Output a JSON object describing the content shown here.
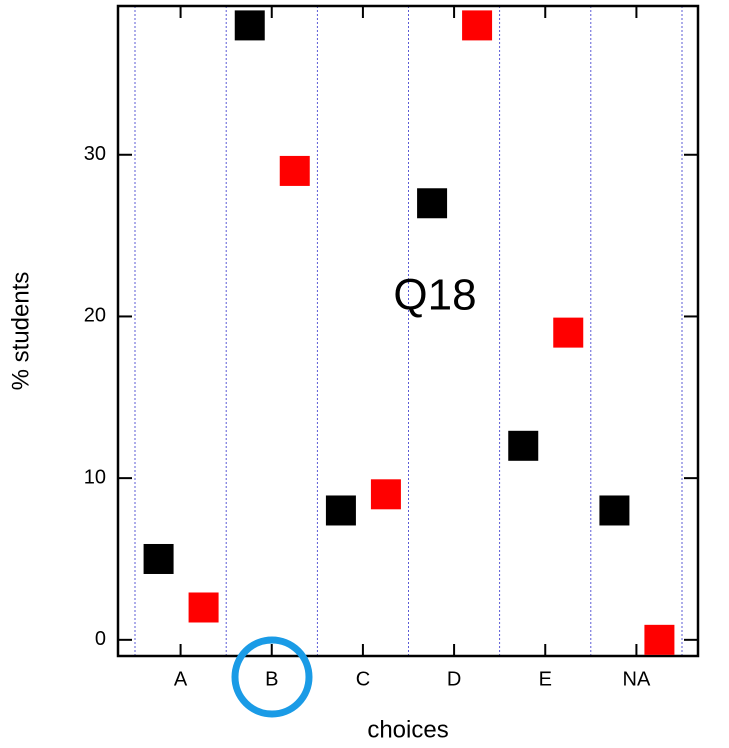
{
  "chart_data": {
    "type": "scatter",
    "annotation": "Q18",
    "xlabel": "choices",
    "ylabel": "% students",
    "categories": [
      "A",
      "B",
      "C",
      "D",
      "E",
      "NA"
    ],
    "series": [
      {
        "color": "#000000",
        "values": [
          5,
          38,
          8,
          27,
          12,
          8
        ]
      },
      {
        "color": "#ff0000",
        "values": [
          2,
          29,
          9,
          38,
          19,
          0
        ]
      }
    ],
    "ylim": [
      -1,
      39.2
    ],
    "yticks": [
      0,
      10,
      20,
      30
    ],
    "grid": true
  }
}
